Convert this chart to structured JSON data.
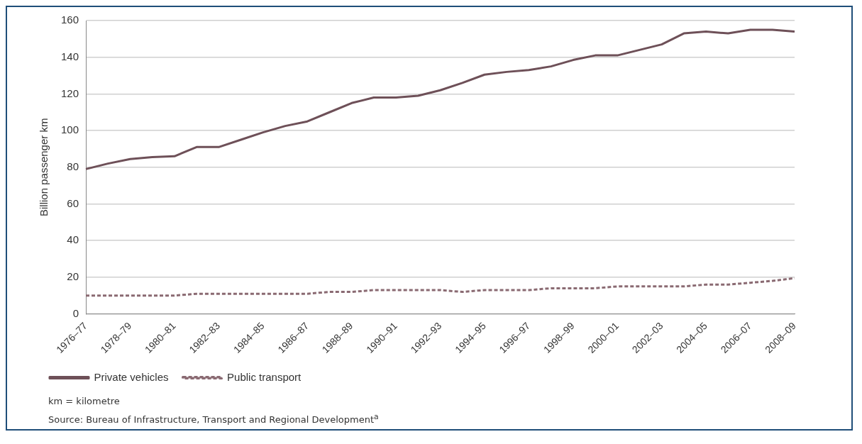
{
  "chart_data": {
    "type": "line",
    "ylabel": "Billion passenger km",
    "categories": [
      "1976–77",
      null,
      "1978–79",
      null,
      "1980–81",
      null,
      "1982–83",
      null,
      "1984–85",
      null,
      "1986–87",
      null,
      "1988–89",
      null,
      "1990–91",
      null,
      "1992–93",
      null,
      "1994–95",
      null,
      "1996–97",
      null,
      "1998–99",
      null,
      "2000–01",
      null,
      "2002–03",
      null,
      "2004–05",
      null,
      "2006–07",
      null,
      "2008–09"
    ],
    "series": [
      {
        "name": "Private vehicles",
        "color": "#6e5058",
        "line_style": "solid",
        "values": [
          79,
          82,
          84.5,
          85.5,
          86,
          91,
          91,
          95,
          99,
          102.5,
          105,
          110,
          115,
          118,
          118,
          119,
          122,
          126,
          130.5,
          132,
          133,
          135,
          138.5,
          141,
          141,
          144,
          147,
          153,
          154,
          153,
          155,
          155,
          154
        ]
      },
      {
        "name": "Public transport",
        "color": "#8a6a72",
        "line_style": "dashed",
        "values": [
          10,
          10,
          10,
          10,
          10,
          11,
          11,
          11,
          11,
          11,
          11,
          12,
          12,
          13,
          13,
          13,
          13,
          12,
          13,
          13,
          13,
          14,
          14,
          14,
          15,
          15,
          15,
          15,
          16,
          16,
          17,
          18,
          19.5
        ]
      }
    ],
    "ylim": [
      0,
      160
    ],
    "yticks": [
      0,
      20,
      40,
      60,
      80,
      100,
      120,
      140,
      160
    ],
    "grid": "y",
    "legend": "bottom left",
    "marker": "none",
    "annotations": [
      "km = kilometre",
      "Source: Bureau of Infrastructure, Transport and Regional Development$^{a}$"
    ]
  }
}
